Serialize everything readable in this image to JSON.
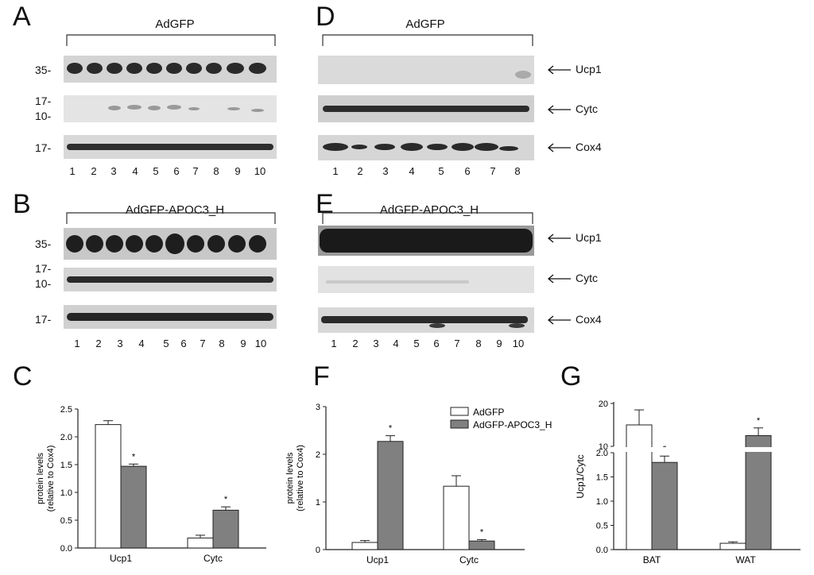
{
  "panels": {
    "A": {
      "letter": "A",
      "title": "AdGFP",
      "mw": [
        "35-",
        "17-",
        "10-",
        "17-"
      ],
      "lanes": [
        "1",
        "2",
        "3",
        "4",
        "5",
        "6",
        "7",
        "8",
        "9",
        "10"
      ]
    },
    "B": {
      "letter": "B",
      "title": "AdGFP-APOC3_H",
      "mw": [
        "35-",
        "17-",
        "10-",
        "17-"
      ],
      "lanes": [
        "1",
        "2",
        "3",
        "4",
        "5",
        "6",
        "7",
        "8",
        "9",
        "10"
      ]
    },
    "C": {
      "letter": "C"
    },
    "D": {
      "letter": "D",
      "title": "AdGFP",
      "bands": [
        "Ucp1",
        "Cytc",
        "Cox4"
      ],
      "lanes": [
        "1",
        "2",
        "3",
        "4",
        "5",
        "6",
        "7",
        "8"
      ]
    },
    "E": {
      "letter": "E",
      "title": "AdGFP-APOC3_H",
      "bands": [
        "Ucp1",
        "Cytc",
        "Cox4"
      ],
      "lanes": [
        "1",
        "2",
        "3",
        "4",
        "5",
        "6",
        "7",
        "8",
        "9",
        "10"
      ]
    },
    "F": {
      "letter": "F"
    },
    "G": {
      "letter": "G"
    }
  },
  "chart_data": [
    {
      "panel": "C",
      "type": "bar",
      "ylabel": "protein levels\n(relative to Cox4)",
      "categories": [
        "Ucp1",
        "Cytc"
      ],
      "yticks": [
        "0.0",
        "0.5",
        "1.0",
        "1.5",
        "2.0",
        "2.5"
      ],
      "ylim": [
        0,
        2.5
      ],
      "series": [
        {
          "name": "AdGFP",
          "values": [
            2.22,
            0.18
          ],
          "err": [
            0.07,
            0.05
          ]
        },
        {
          "name": "AdGFP-APOC3_H",
          "values": [
            1.47,
            0.68
          ],
          "err": [
            0.04,
            0.06
          ]
        }
      ],
      "significance": [
        "*",
        "*"
      ],
      "colors": {
        "AdGFP": "#ffffff",
        "AdGFP-APOC3_H": "#808080"
      }
    },
    {
      "panel": "F",
      "type": "bar",
      "ylabel": "protein levels\n(relative to Cox4)",
      "categories": [
        "Ucp1",
        "Cytc"
      ],
      "yticks": [
        "0",
        "1",
        "2",
        "3"
      ],
      "ylim": [
        0,
        3
      ],
      "series": [
        {
          "name": "AdGFP",
          "values": [
            0.15,
            1.33
          ],
          "err": [
            0.04,
            0.22
          ]
        },
        {
          "name": "AdGFP-APOC3_H",
          "values": [
            2.27,
            0.18
          ],
          "err": [
            0.12,
            0.03
          ]
        }
      ],
      "significance": [
        "*",
        "*"
      ],
      "legend": [
        "AdGFP",
        "AdGFP-APOC3_H"
      ],
      "legend_position": "top-right",
      "colors": {
        "AdGFP": "#ffffff",
        "AdGFP-APOC3_H": "#808080"
      }
    },
    {
      "panel": "G",
      "type": "bar",
      "ylabel": "Ucp1/Cytc",
      "axis_break": true,
      "categories": [
        "BAT",
        "WAT"
      ],
      "yticks_lower": [
        "0.0",
        "0.5",
        "1.0",
        "1.5",
        "2.0"
      ],
      "yticks_upper": [
        "10",
        "20"
      ],
      "series": [
        {
          "name": "AdGFP",
          "values": [
            15,
            0.13
          ],
          "err": [
            3.5,
            0.03
          ]
        },
        {
          "name": "AdGFP-APOC3_H",
          "values": [
            1.8,
            12.5
          ],
          "err": [
            0.13,
            1.8
          ]
        }
      ],
      "significance": [
        "*",
        "*"
      ],
      "colors": {
        "AdGFP": "#ffffff",
        "AdGFP-APOC3_H": "#808080"
      }
    }
  ]
}
